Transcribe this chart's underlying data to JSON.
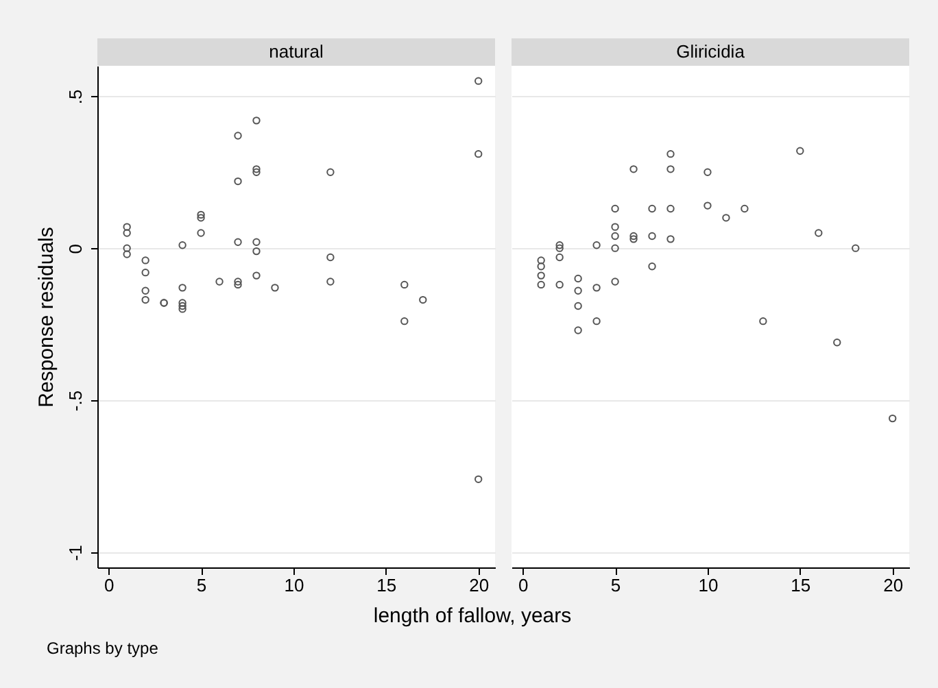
{
  "chart_data": [
    {
      "type": "scatter",
      "title": "natural",
      "ylabel": "Response residuals",
      "xlabel": "length of fallow, years",
      "annotations": [
        "Graphs by type"
      ],
      "marker": "circle",
      "grid": "y",
      "xlim": [
        -0.6,
        20.9
      ],
      "xticks": [
        0,
        5,
        10,
        15,
        20
      ],
      "ylim": [
        -1.05,
        0.6
      ],
      "yticks": [
        {
          "value": 0.5,
          "label": ".5"
        },
        0,
        {
          "value": -0.5,
          "label": "-.5"
        },
        -1
      ],
      "series": [
        {
          "color": "#555555",
          "x": [
            1,
            1,
            1,
            1,
            2,
            2,
            2,
            2,
            3,
            3,
            4,
            4,
            4,
            4,
            4,
            5,
            5,
            5,
            6,
            7,
            7,
            7,
            7,
            7,
            8,
            8,
            8,
            8,
            8,
            8,
            9,
            12,
            12,
            12,
            16,
            16,
            17,
            20,
            20,
            20
          ],
          "values": [
            0.07,
            0.05,
            0.0,
            -0.02,
            -0.04,
            -0.08,
            -0.14,
            -0.17,
            -0.18,
            -0.18,
            0.01,
            -0.13,
            -0.18,
            -0.19,
            -0.2,
            0.11,
            0.1,
            0.05,
            -0.11,
            0.37,
            0.22,
            0.02,
            -0.11,
            -0.12,
            0.42,
            0.26,
            0.25,
            0.02,
            -0.01,
            -0.09,
            -0.13,
            0.25,
            -0.03,
            -0.11,
            -0.12,
            -0.24,
            -0.17,
            0.55,
            0.31,
            -0.76
          ]
        }
      ]
    },
    {
      "type": "scatter",
      "title": "Gliricidia",
      "marker": "circle",
      "grid": "y",
      "tick_labels": "x",
      "xlim": [
        -0.6,
        20.9
      ],
      "xticks": [
        0,
        5,
        10,
        15,
        20
      ],
      "ylim": [
        -1.05,
        0.6
      ],
      "yticks": [
        0.5,
        0,
        -0.5,
        -1
      ],
      "series": [
        {
          "color": "#555555",
          "x": [
            1,
            1,
            1,
            1,
            2,
            2,
            2,
            2,
            3,
            3,
            3,
            3,
            4,
            4,
            4,
            5,
            5,
            5,
            5,
            5,
            6,
            6,
            6,
            7,
            7,
            7,
            8,
            8,
            8,
            8,
            10,
            10,
            11,
            12,
            13,
            15,
            16,
            17,
            18,
            20
          ],
          "values": [
            -0.04,
            -0.06,
            -0.09,
            -0.12,
            0.01,
            0.0,
            -0.03,
            -0.12,
            -0.1,
            -0.14,
            -0.19,
            -0.27,
            0.01,
            -0.13,
            -0.24,
            0.13,
            0.07,
            0.04,
            0.0,
            -0.11,
            0.26,
            0.04,
            0.03,
            0.13,
            0.04,
            -0.06,
            0.31,
            0.26,
            0.13,
            0.03,
            0.25,
            0.14,
            0.1,
            0.13,
            -0.24,
            0.32,
            0.05,
            -0.31,
            0.0,
            -0.56
          ]
        }
      ]
    }
  ]
}
